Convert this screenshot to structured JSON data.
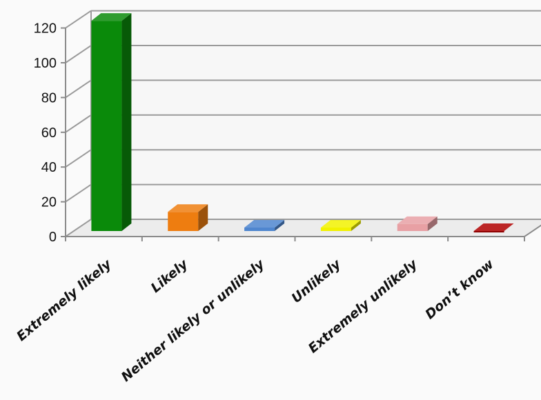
{
  "chart_data": {
    "type": "bar",
    "style": "3d-column",
    "categories": [
      "Extremely likely",
      "Likely",
      "Neither likely or unlikely",
      "Unlikely",
      "Extremely unlikely",
      "Don’t know"
    ],
    "values": [
      121,
      11,
      2,
      2,
      4,
      0
    ],
    "colors": [
      "#0a8a0a",
      "#ee7d10",
      "#4f86cf",
      "#f2f200",
      "#e8a0a4",
      "#b00000"
    ],
    "yticks": [
      0,
      20,
      40,
      60,
      80,
      100,
      120
    ],
    "ylim": [
      0,
      120
    ],
    "grid": true,
    "legend": "none"
  }
}
